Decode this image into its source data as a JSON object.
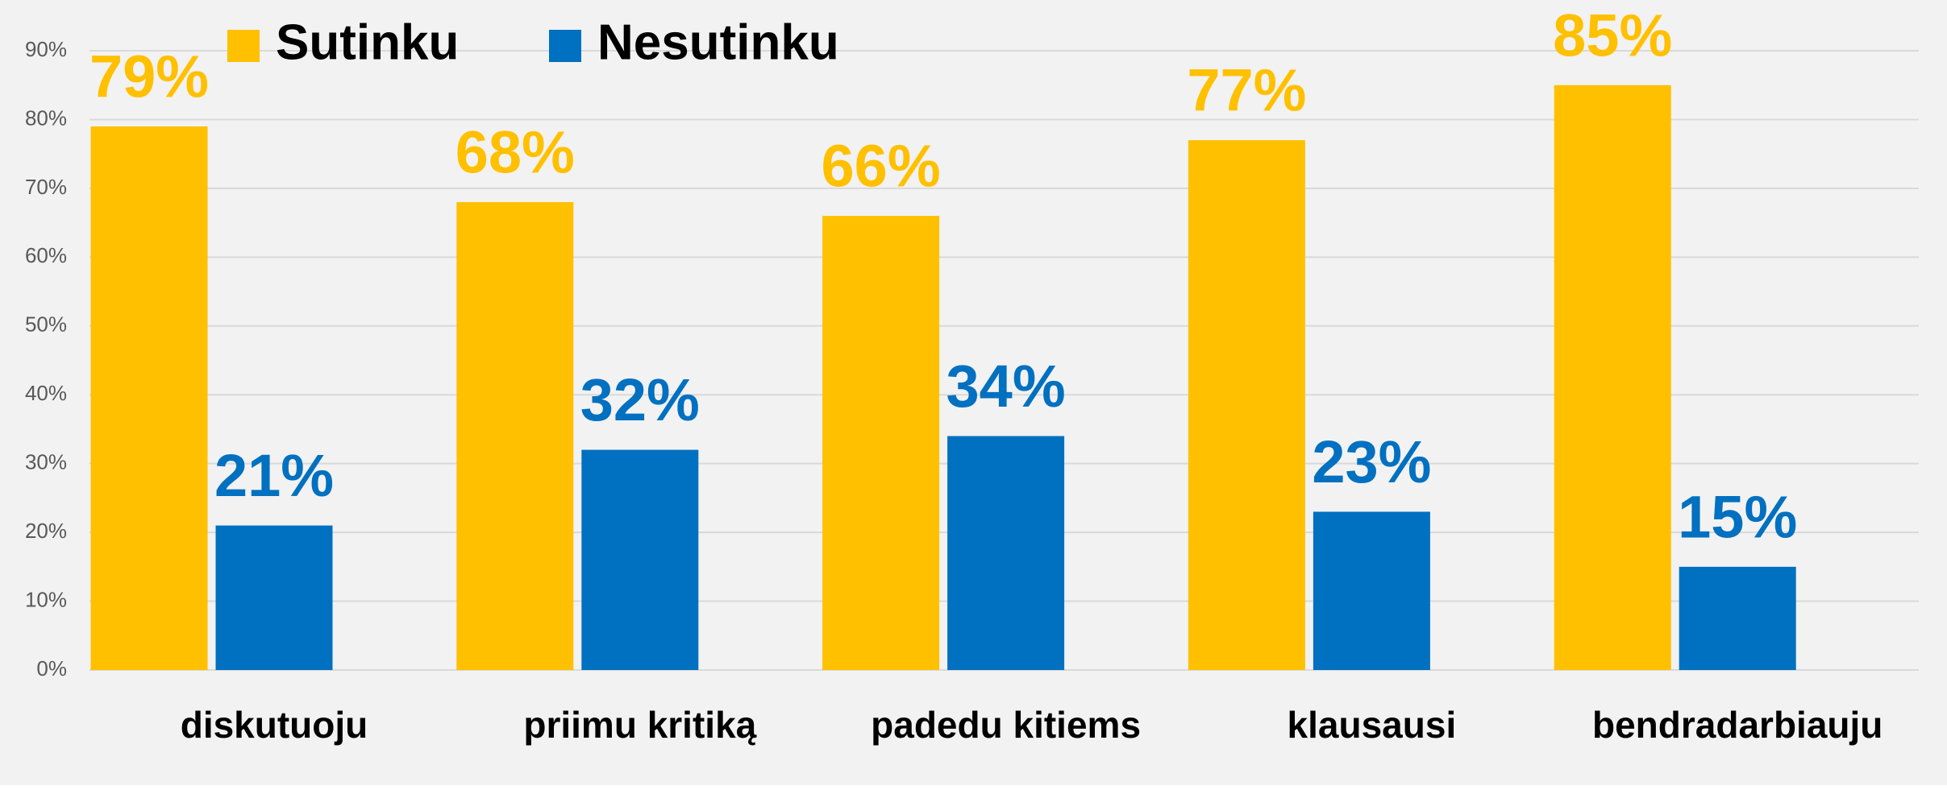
{
  "chart_data": {
    "type": "bar",
    "categories": [
      "diskutuoju",
      "priimu kritiką",
      "padedu kitiems",
      "klausausi",
      "bendradarbiauju"
    ],
    "series": [
      {
        "name": "Sutinku",
        "color": "#ffc000",
        "values": [
          79,
          68,
          66,
          77,
          85
        ],
        "value_labels": [
          "79%",
          "68%",
          "66%",
          "77%",
          "85%"
        ]
      },
      {
        "name": "Nesutinku",
        "color": "#0070c0",
        "values": [
          21,
          32,
          34,
          23,
          15
        ],
        "value_labels": [
          "21%",
          "32%",
          "34%",
          "23%",
          "15%"
        ]
      }
    ],
    "ylim": [
      0,
      90
    ],
    "yticks": [
      {
        "value": 0,
        "label": "0%"
      },
      {
        "value": 10,
        "label": "10%"
      },
      {
        "value": 20,
        "label": "20%"
      },
      {
        "value": 30,
        "label": "30%"
      },
      {
        "value": 40,
        "label": "40%"
      },
      {
        "value": 50,
        "label": "50%"
      },
      {
        "value": 60,
        "label": "60%"
      },
      {
        "value": 70,
        "label": "70%"
      },
      {
        "value": 80,
        "label": "80%"
      },
      {
        "value": 90,
        "label": "90%"
      }
    ],
    "grid": true,
    "legend": "top"
  }
}
